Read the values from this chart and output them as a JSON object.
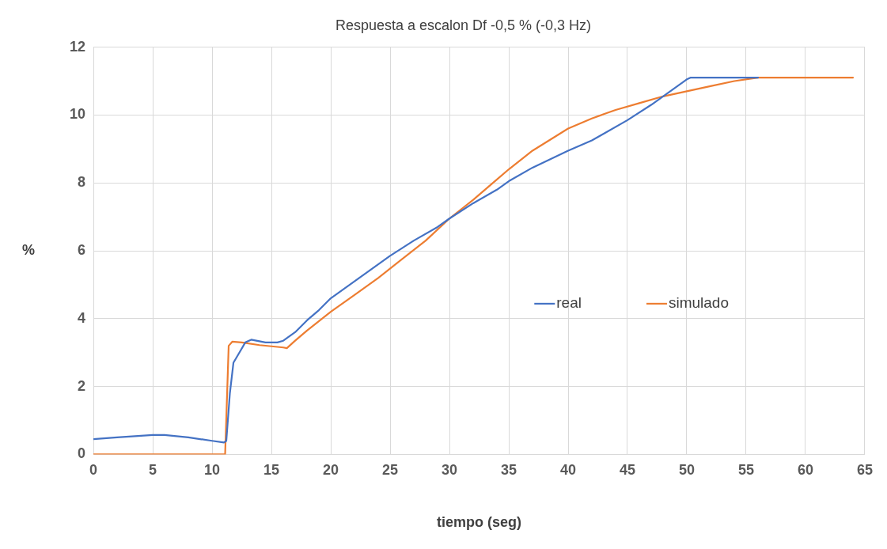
{
  "chart_data": {
    "type": "line",
    "title": "Respuesta a escalon Df -0,5 % (-0,3 Hz)",
    "xlabel": "tiempo (seg)",
    "ylabel": "%",
    "xlim": [
      0,
      65
    ],
    "xticks": [
      0,
      5,
      10,
      15,
      20,
      25,
      30,
      35,
      40,
      45,
      50,
      55,
      60,
      65
    ],
    "ylim": [
      0,
      12
    ],
    "yticks": [
      0,
      2,
      4,
      6,
      8,
      10,
      12
    ],
    "grid": true,
    "legend": "right",
    "marker": "none",
    "line_style": "solid",
    "series": [
      {
        "name": "real",
        "color": "#4472c4",
        "x": [
          0,
          2,
          5,
          6,
          8,
          10,
          11,
          11.2,
          11.5,
          11.8,
          12.3,
          12.8,
          13.3,
          14.5,
          15.5,
          16,
          17,
          18,
          19,
          20,
          22,
          24,
          25,
          27,
          29,
          30,
          32,
          34,
          35,
          37,
          40,
          42,
          43,
          45,
          47,
          49,
          50,
          50.3,
          55,
          56
        ],
        "values": [
          0.45,
          0.5,
          0.57,
          0.57,
          0.5,
          0.4,
          0.35,
          0.4,
          1.8,
          2.7,
          3.0,
          3.3,
          3.38,
          3.3,
          3.3,
          3.35,
          3.6,
          3.95,
          4.25,
          4.6,
          5.1,
          5.6,
          5.85,
          6.3,
          6.7,
          6.95,
          7.4,
          7.8,
          8.05,
          8.45,
          8.95,
          9.25,
          9.45,
          9.85,
          10.3,
          10.8,
          11.05,
          11.1,
          11.1,
          11.1
        ]
      },
      {
        "name": "simulado",
        "color": "#ed7d31",
        "x": [
          0,
          11,
          11.1,
          11.4,
          11.7,
          12.5,
          14,
          16,
          16.3,
          17,
          18,
          20,
          22,
          24,
          26,
          28,
          30,
          32,
          34,
          35,
          37,
          40,
          42,
          44,
          46,
          48,
          50,
          52,
          54,
          56,
          64
        ],
        "values": [
          0,
          0,
          0,
          3.2,
          3.32,
          3.3,
          3.22,
          3.15,
          3.13,
          3.35,
          3.65,
          4.2,
          4.7,
          5.2,
          5.75,
          6.3,
          6.95,
          7.5,
          8.1,
          8.4,
          8.95,
          9.6,
          9.9,
          10.15,
          10.35,
          10.55,
          10.7,
          10.85,
          11.0,
          11.1,
          11.1
        ]
      }
    ]
  }
}
